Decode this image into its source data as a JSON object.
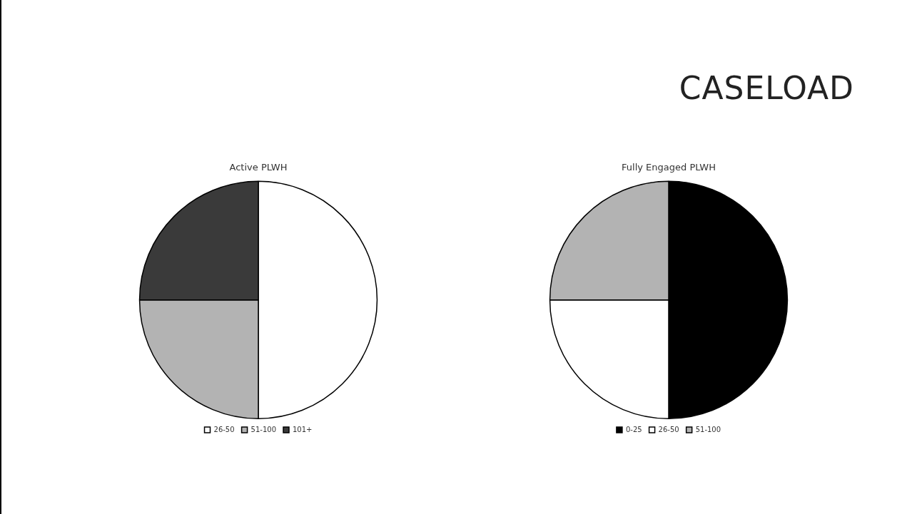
{
  "chart_data": [
    {
      "type": "pie",
      "title": "Active PLWH",
      "categories": [
        "26-50",
        "51-100",
        "101+"
      ],
      "values": [
        50,
        25,
        25
      ],
      "colors": [
        "#ffffff",
        "#b3b3b3",
        "#3a3a3a"
      ],
      "legend": "bottom",
      "annotations": [
        "CASELOAD"
      ]
    },
    {
      "type": "pie",
      "title": "Fully Engaged PLWH",
      "categories": [
        "0-25",
        "26-50",
        "51-100"
      ],
      "values": [
        50,
        25,
        25
      ],
      "colors": [
        "#000000",
        "#ffffff",
        "#b3b3b3"
      ],
      "legend": "bottom"
    }
  ]
}
